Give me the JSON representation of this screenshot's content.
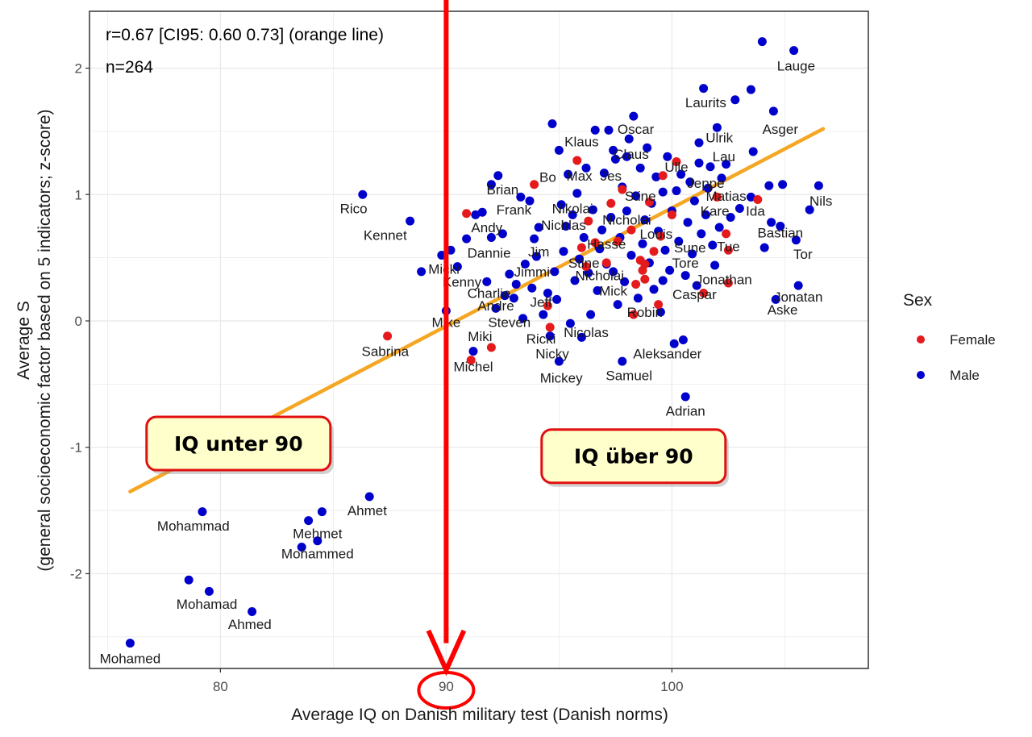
{
  "chart_data": {
    "type": "scatter",
    "xlabel": "Average IQ on Danish military test (Danish norms)",
    "ylabel_line1": "Average S",
    "ylabel_line2": "(general socioeconomic factor based on 5 indicators; z-score)",
    "xlim": [
      74.2,
      108.7
    ],
    "ylim": [
      -2.75,
      2.45
    ],
    "x_ticks": [
      80,
      90,
      100
    ],
    "y_ticks": [
      -2,
      -1,
      0,
      1,
      2
    ],
    "grid": true,
    "annotations": [
      "r=0.67 [CI95: 0.60 0.73] (orange line)",
      "n=264"
    ],
    "legend": {
      "title": "Sex",
      "position": "right",
      "entries": [
        {
          "name": "Female",
          "color": "#e41a1c"
        },
        {
          "name": "Male",
          "color": "#0000cc"
        }
      ]
    },
    "regression_line": {
      "color": "#f5a623",
      "x": [
        76,
        106.7
      ],
      "y": [
        -1.35,
        1.52
      ]
    },
    "vertical_marker": {
      "x": 90,
      "color": "#ff0000"
    },
    "callouts": [
      {
        "text": "IQ unter 90",
        "x": 80.8,
        "y": -0.97
      },
      {
        "text": "IQ über 90",
        "x": 98.3,
        "y": -1.07
      }
    ],
    "points_female": [
      [
        87.4,
        -0.12
      ],
      [
        90.9,
        0.85
      ],
      [
        92.0,
        -0.21
      ],
      [
        91.1,
        -0.31
      ],
      [
        93.9,
        1.08
      ],
      [
        94.5,
        0.12
      ],
      [
        94.6,
        -0.05
      ],
      [
        95.8,
        1.27
      ],
      [
        96.0,
        0.58
      ],
      [
        96.2,
        0.43
      ],
      [
        96.3,
        0.79
      ],
      [
        96.6,
        0.62
      ],
      [
        97.1,
        0.46
      ],
      [
        97.3,
        0.93
      ],
      [
        97.6,
        0.63
      ],
      [
        97.8,
        1.04
      ],
      [
        98.2,
        0.72
      ],
      [
        98.3,
        0.05
      ],
      [
        98.4,
        0.29
      ],
      [
        98.6,
        0.48
      ],
      [
        98.7,
        0.4
      ],
      [
        98.8,
        0.45
      ],
      [
        98.8,
        0.33
      ],
      [
        99.0,
        0.94
      ],
      [
        99.2,
        0.55
      ],
      [
        99.4,
        0.13
      ],
      [
        99.5,
        0.67
      ],
      [
        99.6,
        1.15
      ],
      [
        100.0,
        0.84
      ],
      [
        100.2,
        1.26
      ],
      [
        101.4,
        0.22
      ],
      [
        102.0,
        0.98
      ],
      [
        102.4,
        0.69
      ],
      [
        102.5,
        0.56
      ],
      [
        102.5,
        0.3
      ],
      [
        103.8,
        0.96
      ]
    ],
    "points_male": [
      [
        76.0,
        -2.55
      ],
      [
        78.6,
        -2.05
      ],
      [
        79.2,
        -1.51
      ],
      [
        79.5,
        -2.14
      ],
      [
        81.4,
        -2.3
      ],
      [
        83.6,
        -1.79
      ],
      [
        83.9,
        -1.58
      ],
      [
        84.3,
        -1.74
      ],
      [
        84.5,
        -1.51
      ],
      [
        86.6,
        -1.39
      ],
      [
        86.3,
        1.0
      ],
      [
        88.4,
        0.79
      ],
      [
        88.9,
        0.39
      ],
      [
        89.8,
        0.52
      ],
      [
        90.0,
        0.08
      ],
      [
        90.2,
        0.56
      ],
      [
        90.5,
        0.43
      ],
      [
        90.9,
        0.65
      ],
      [
        91.3,
        0.84
      ],
      [
        91.6,
        0.86
      ],
      [
        91.8,
        0.31
      ],
      [
        92.0,
        0.66
      ],
      [
        92.2,
        0.1
      ],
      [
        92.3,
        1.15
      ],
      [
        92.5,
        0.69
      ],
      [
        92.6,
        0.2
      ],
      [
        92.8,
        0.37
      ],
      [
        93.0,
        0.18
      ],
      [
        93.1,
        0.29
      ],
      [
        93.3,
        0.98
      ],
      [
        93.4,
        0.02
      ],
      [
        93.5,
        0.45
      ],
      [
        93.7,
        0.95
      ],
      [
        93.8,
        0.26
      ],
      [
        93.9,
        0.65
      ],
      [
        94.0,
        0.51
      ],
      [
        94.1,
        0.74
      ],
      [
        94.3,
        0.05
      ],
      [
        94.5,
        0.22
      ],
      [
        94.6,
        -0.12
      ],
      [
        94.7,
        1.56
      ],
      [
        94.8,
        0.39
      ],
      [
        94.9,
        0.17
      ],
      [
        95.0,
        1.35
      ],
      [
        95.1,
        0.92
      ],
      [
        95.2,
        0.55
      ],
      [
        95.3,
        0.75
      ],
      [
        95.4,
        1.16
      ],
      [
        95.5,
        -0.02
      ],
      [
        95.6,
        0.84
      ],
      [
        95.7,
        0.32
      ],
      [
        95.8,
        1.01
      ],
      [
        95.9,
        0.49
      ],
      [
        96.0,
        -0.13
      ],
      [
        96.1,
        0.66
      ],
      [
        96.2,
        1.21
      ],
      [
        96.3,
        0.38
      ],
      [
        96.4,
        0.05
      ],
      [
        96.5,
        0.88
      ],
      [
        96.6,
        1.51
      ],
      [
        96.7,
        0.24
      ],
      [
        96.8,
        0.57
      ],
      [
        96.9,
        0.72
      ],
      [
        97.0,
        1.17
      ],
      [
        97.1,
        0.45
      ],
      [
        97.2,
        1.51
      ],
      [
        97.3,
        0.82
      ],
      [
        97.4,
        0.39
      ],
      [
        97.5,
        1.28
      ],
      [
        97.6,
        0.13
      ],
      [
        97.7,
        0.66
      ],
      [
        97.8,
        1.06
      ],
      [
        97.9,
        0.31
      ],
      [
        98.0,
        0.87
      ],
      [
        98.1,
        1.44
      ],
      [
        98.2,
        0.52
      ],
      [
        98.3,
        1.62
      ],
      [
        98.4,
        0.99
      ],
      [
        98.5,
        0.18
      ],
      [
        98.6,
        1.21
      ],
      [
        98.7,
        0.61
      ],
      [
        98.8,
        0.8
      ],
      [
        98.9,
        1.37
      ],
      [
        99.0,
        0.46
      ],
      [
        99.1,
        0.93
      ],
      [
        99.2,
        0.25
      ],
      [
        99.3,
        1.14
      ],
      [
        99.4,
        0.71
      ],
      [
        99.5,
        0.07
      ],
      [
        99.6,
        1.02
      ],
      [
        99.7,
        0.56
      ],
      [
        99.8,
        1.3
      ],
      [
        99.9,
        0.4
      ],
      [
        100.0,
        0.87
      ],
      [
        100.1,
        -0.18
      ],
      [
        100.2,
        1.03
      ],
      [
        100.3,
        0.63
      ],
      [
        100.4,
        1.16
      ],
      [
        100.5,
        -0.15
      ],
      [
        100.6,
        0.36
      ],
      [
        100.7,
        0.78
      ],
      [
        100.8,
        1.1
      ],
      [
        100.9,
        0.53
      ],
      [
        101.0,
        0.95
      ],
      [
        101.1,
        0.28
      ],
      [
        101.2,
        1.41
      ],
      [
        101.3,
        0.69
      ],
      [
        101.4,
        1.84
      ],
      [
        101.5,
        0.84
      ],
      [
        101.6,
        1.05
      ],
      [
        101.7,
        1.22
      ],
      [
        101.8,
        0.6
      ],
      [
        101.9,
        0.44
      ],
      [
        102.0,
        1.53
      ],
      [
        102.1,
        0.74
      ],
      [
        102.2,
        1.13
      ],
      [
        102.4,
        1.24
      ],
      [
        102.6,
        0.82
      ],
      [
        102.8,
        1.75
      ],
      [
        103.0,
        0.89
      ],
      [
        103.5,
        1.83
      ],
      [
        103.6,
        1.34
      ],
      [
        104.0,
        2.21
      ],
      [
        104.1,
        0.58
      ],
      [
        104.3,
        1.07
      ],
      [
        104.4,
        0.78
      ],
      [
        104.5,
        1.66
      ],
      [
        104.6,
        0.17
      ],
      [
        104.8,
        0.75
      ],
      [
        104.9,
        1.08
      ],
      [
        105.4,
        2.14
      ],
      [
        105.5,
        0.64
      ],
      [
        105.6,
        0.28
      ],
      [
        106.1,
        0.88
      ],
      [
        106.5,
        1.07
      ],
      [
        97.8,
        -0.32
      ],
      [
        95.0,
        -0.32
      ],
      [
        91.2,
        -0.24
      ],
      [
        92.0,
        1.08
      ],
      [
        98.0,
        1.3
      ],
      [
        99.6,
        0.32
      ],
      [
        100.6,
        -0.6
      ],
      [
        97.4,
        1.35
      ],
      [
        103.5,
        0.98
      ],
      [
        101.2,
        1.25
      ]
    ],
    "point_labels": [
      {
        "text": "Lauge",
        "x": 105.5,
        "y": 2.02
      },
      {
        "text": "Laurits",
        "x": 101.5,
        "y": 1.73
      },
      {
        "text": "Asger",
        "x": 104.8,
        "y": 1.52
      },
      {
        "text": "Oscar",
        "x": 98.4,
        "y": 1.52
      },
      {
        "text": "Klaus",
        "x": 96.0,
        "y": 1.42
      },
      {
        "text": "Ulrik",
        "x": 102.1,
        "y": 1.45
      },
      {
        "text": "Claus",
        "x": 98.2,
        "y": 1.32
      },
      {
        "text": "Lau",
        "x": 102.3,
        "y": 1.3
      },
      {
        "text": "Ulle",
        "x": 100.2,
        "y": 1.22
      },
      {
        "text": "Bo",
        "x": 94.5,
        "y": 1.14
      },
      {
        "text": "Max",
        "x": 95.9,
        "y": 1.15
      },
      {
        "text": "Jes",
        "x": 97.3,
        "y": 1.15
      },
      {
        "text": "Jeppe",
        "x": 101.5,
        "y": 1.09
      },
      {
        "text": "Brian",
        "x": 92.5,
        "y": 1.04
      },
      {
        "text": "Stine",
        "x": 98.6,
        "y": 0.99
      },
      {
        "text": "Matias",
        "x": 102.4,
        "y": 0.99
      },
      {
        "text": "Nils",
        "x": 106.6,
        "y": 0.95
      },
      {
        "text": "Rico",
        "x": 85.9,
        "y": 0.89
      },
      {
        "text": "Frank",
        "x": 93.0,
        "y": 0.88
      },
      {
        "text": "Nikolai",
        "x": 95.6,
        "y": 0.89
      },
      {
        "text": "Kare",
        "x": 101.9,
        "y": 0.87
      },
      {
        "text": "Ida",
        "x": 103.7,
        "y": 0.87
      },
      {
        "text": "Nicholai",
        "x": 98.0,
        "y": 0.8
      },
      {
        "text": "Andy",
        "x": 91.8,
        "y": 0.74
      },
      {
        "text": "Nichlas",
        "x": 95.2,
        "y": 0.76
      },
      {
        "text": "Kennet",
        "x": 87.3,
        "y": 0.68
      },
      {
        "text": "Louis",
        "x": 99.3,
        "y": 0.69
      },
      {
        "text": "Bastian",
        "x": 104.8,
        "y": 0.7
      },
      {
        "text": "Hasse",
        "x": 97.1,
        "y": 0.61
      },
      {
        "text": "Sune",
        "x": 100.8,
        "y": 0.58
      },
      {
        "text": "Tue",
        "x": 102.5,
        "y": 0.59
      },
      {
        "text": "Dannie",
        "x": 91.9,
        "y": 0.54
      },
      {
        "text": "Jim",
        "x": 94.1,
        "y": 0.55
      },
      {
        "text": "Tor",
        "x": 105.8,
        "y": 0.53
      },
      {
        "text": "Stine",
        "x": 96.1,
        "y": 0.46
      },
      {
        "text": "Tore",
        "x": 100.6,
        "y": 0.46
      },
      {
        "text": "Micki",
        "x": 89.9,
        "y": 0.41
      },
      {
        "text": "Jimmi",
        "x": 93.8,
        "y": 0.39
      },
      {
        "text": "Nicholai",
        "x": 96.8,
        "y": 0.36
      },
      {
        "text": "Jonathan",
        "x": 102.3,
        "y": 0.33
      },
      {
        "text": "Kenny",
        "x": 90.7,
        "y": 0.31
      },
      {
        "text": "Charlie",
        "x": 91.9,
        "y": 0.22
      },
      {
        "text": "Mick",
        "x": 97.4,
        "y": 0.24
      },
      {
        "text": "Caspar",
        "x": 101.0,
        "y": 0.21
      },
      {
        "text": "Jonatan",
        "x": 105.6,
        "y": 0.19
      },
      {
        "text": "Jeff",
        "x": 94.2,
        "y": 0.15
      },
      {
        "text": "Andre",
        "x": 92.2,
        "y": 0.12
      },
      {
        "text": "Aske",
        "x": 104.9,
        "y": 0.09
      },
      {
        "text": "Robin",
        "x": 98.8,
        "y": 0.07
      },
      {
        "text": "Mike",
        "x": 90.0,
        "y": -0.01
      },
      {
        "text": "Steven",
        "x": 92.8,
        "y": -0.01
      },
      {
        "text": "Miki",
        "x": 91.5,
        "y": -0.12
      },
      {
        "text": "Nicolas",
        "x": 96.2,
        "y": -0.09
      },
      {
        "text": "Ricki",
        "x": 94.2,
        "y": -0.14
      },
      {
        "text": "Sabrina",
        "x": 87.3,
        "y": -0.24
      },
      {
        "text": "Nicky",
        "x": 94.7,
        "y": -0.26
      },
      {
        "text": "Aleksander",
        "x": 99.8,
        "y": -0.26
      },
      {
        "text": "Michel",
        "x": 91.2,
        "y": -0.36
      },
      {
        "text": "Mickey",
        "x": 95.1,
        "y": -0.45
      },
      {
        "text": "Samuel",
        "x": 98.1,
        "y": -0.43
      },
      {
        "text": "Adrian",
        "x": 100.6,
        "y": -0.71
      },
      {
        "text": "Ahmet",
        "x": 86.5,
        "y": -1.5
      },
      {
        "text": "Mohammad",
        "x": 78.8,
        "y": -1.62
      },
      {
        "text": "Mehmet",
        "x": 84.3,
        "y": -1.68
      },
      {
        "text": "Mohammed",
        "x": 84.3,
        "y": -1.84
      },
      {
        "text": "Mohamad",
        "x": 79.4,
        "y": -2.24
      },
      {
        "text": "Ahmed",
        "x": 81.3,
        "y": -2.4
      },
      {
        "text": "Mohamed",
        "x": 76.0,
        "y": -2.67
      }
    ]
  }
}
